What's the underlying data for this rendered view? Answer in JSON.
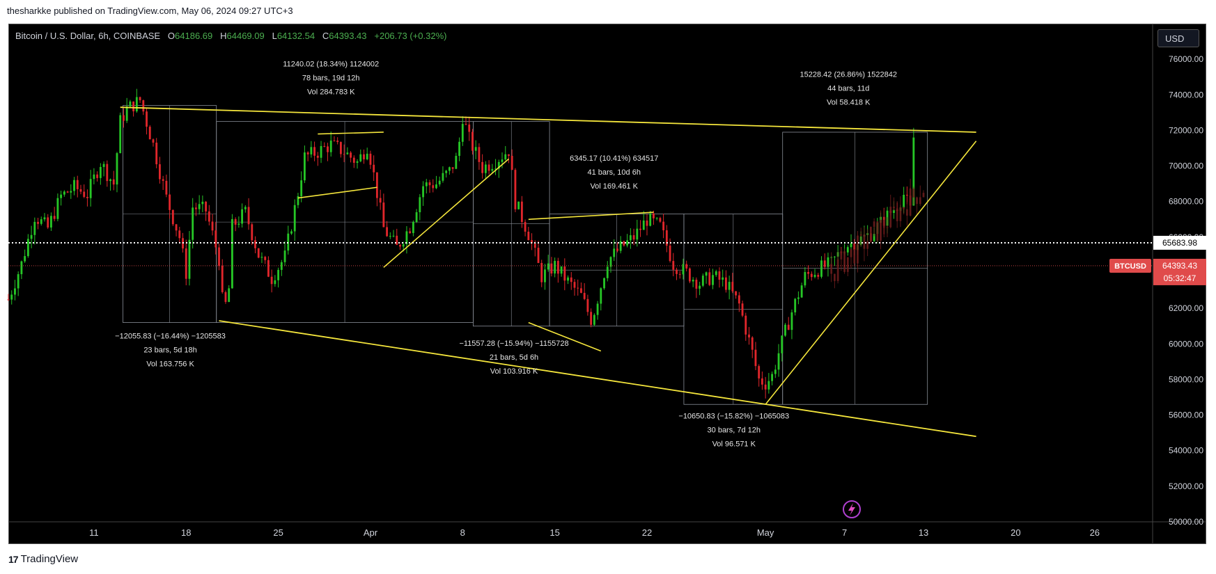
{
  "header": {
    "credit": "thesharkke published on TradingView.com, May 06, 2024 09:27 UTC+3"
  },
  "footer": {
    "logo_text": "TradingView"
  },
  "legend": {
    "symbol": "Bitcoin / U.S. Dollar, 6h, COINBASE",
    "o_label": "O",
    "o_value": "64186.69",
    "h_label": "H",
    "h_value": "64469.09",
    "l_label": "L",
    "l_value": "64132.54",
    "c_label": "C",
    "c_value": "64393.43",
    "change": "+206.73 (+0.32%)"
  },
  "currency_button": "USD",
  "colors": {
    "up": "#26c626",
    "down": "#e0262b",
    "trendline": "#f5e63c",
    "box": "#8a8f98",
    "price_tag": "#e04b4b",
    "background": "#000000"
  },
  "chart_data": {
    "type": "candlestick",
    "symbol": "BTCUSD",
    "interval": "6h",
    "y_axis": {
      "min": 50000,
      "max": 78000,
      "ticks": [
        "76000.00",
        "74000.00",
        "72000.00",
        "70000.00",
        "68000.00",
        "66000.00",
        "64000.00",
        "62000.00",
        "60000.00",
        "58000.00",
        "56000.00",
        "54000.00",
        "52000.00",
        "50000.00"
      ]
    },
    "x_axis": {
      "ticks": [
        {
          "label": "11",
          "day": 11
        },
        {
          "label": "18",
          "day": 18
        },
        {
          "label": "25",
          "day": 25
        },
        {
          "label": "Apr",
          "day": 32
        },
        {
          "label": "8",
          "day": 39
        },
        {
          "label": "15",
          "day": 46
        },
        {
          "label": "22",
          "day": 53
        },
        {
          "label": "May",
          "day": 62
        },
        {
          "label": "7",
          "day": 68
        },
        {
          "label": "13",
          "day": 74
        },
        {
          "label": "20",
          "day": 81
        },
        {
          "label": "26",
          "day": 87
        }
      ]
    },
    "price_lines": {
      "dotted": {
        "value": 65683.98,
        "label": "65683.98"
      },
      "last": {
        "value": 64393.43,
        "symbol": "BTCUSD",
        "label": "64393.43",
        "countdown": "05:32:47"
      }
    },
    "price_path": [
      [
        4.5,
        62500
      ],
      [
        5.5,
        64500
      ],
      [
        6.5,
        67200
      ],
      [
        7.5,
        66500
      ],
      [
        8.5,
        68300
      ],
      [
        9.5,
        68800
      ],
      [
        10.5,
        68400
      ],
      [
        11.5,
        70200
      ],
      [
        12.5,
        69000
      ],
      [
        13,
        72500
      ],
      [
        13.5,
        73200
      ],
      [
        14.5,
        73700
      ],
      [
        15.5,
        71200
      ],
      [
        16.5,
        68200
      ],
      [
        17.5,
        66000
      ],
      [
        18,
        64000
      ],
      [
        18.5,
        67700
      ],
      [
        19.5,
        67500
      ],
      [
        20.5,
        64800
      ],
      [
        20.8,
        62000
      ],
      [
        21.2,
        62400
      ],
      [
        21.5,
        66600
      ],
      [
        22.5,
        67400
      ],
      [
        23.5,
        65000
      ],
      [
        24.5,
        63700
      ],
      [
        25.5,
        64900
      ],
      [
        26.5,
        68500
      ],
      [
        27,
        70500
      ],
      [
        28,
        70800
      ],
      [
        29,
        71200
      ],
      [
        30,
        70800
      ],
      [
        31,
        70200
      ],
      [
        31.8,
        71200
      ],
      [
        32.3,
        69300
      ],
      [
        33,
        66500
      ],
      [
        34,
        65400
      ],
      [
        35,
        66600
      ],
      [
        36,
        68900
      ],
      [
        37,
        69000
      ],
      [
        38,
        69700
      ],
      [
        38.6,
        70500
      ],
      [
        39,
        72800
      ],
      [
        39.5,
        71500
      ],
      [
        40.5,
        69900
      ],
      [
        41.5,
        70300
      ],
      [
        42.5,
        70900
      ],
      [
        43,
        68000
      ],
      [
        44,
        66200
      ],
      [
        45,
        63800
      ],
      [
        46,
        64400
      ],
      [
        47,
        63500
      ],
      [
        48,
        62700
      ],
      [
        48.8,
        61300
      ],
      [
        49.3,
        62700
      ],
      [
        50,
        64700
      ],
      [
        51,
        65400
      ],
      [
        52,
        66000
      ],
      [
        53,
        67000
      ],
      [
        54,
        66600
      ],
      [
        55,
        64500
      ],
      [
        56,
        64000
      ],
      [
        57,
        63400
      ],
      [
        58,
        63800
      ],
      [
        59,
        63400
      ],
      [
        60,
        62200
      ],
      [
        61,
        59500
      ],
      [
        61.5,
        58000
      ],
      [
        62,
        57800
      ],
      [
        62.5,
        58200
      ],
      [
        63,
        59500
      ],
      [
        64,
        61800
      ],
      [
        65,
        63800
      ],
      [
        66,
        64200
      ],
      [
        67,
        64500
      ],
      [
        68,
        65500
      ],
      [
        69,
        65800
      ],
      [
        70,
        66200
      ],
      [
        71,
        67000
      ],
      [
        72,
        67800
      ],
      [
        72.5,
        68400
      ],
      [
        73,
        67500
      ],
      [
        73.4,
        71600
      ]
    ],
    "trendlines": [
      {
        "from": [
          13,
          73300
        ],
        "to": [
          78,
          71900
        ]
      },
      {
        "from": [
          20.5,
          61300
        ],
        "to": [
          78,
          54800
        ]
      },
      {
        "from": [
          26.5,
          68200
        ],
        "to": [
          32.5,
          68800
        ]
      },
      {
        "from": [
          28,
          71800
        ],
        "to": [
          33,
          71900
        ]
      },
      {
        "from": [
          33,
          64300
        ],
        "to": [
          42.5,
          70400
        ]
      },
      {
        "from": [
          44,
          67000
        ],
        "to": [
          53.5,
          67400
        ]
      },
      {
        "from": [
          44,
          61200
        ],
        "to": [
          49.5,
          59600
        ]
      },
      {
        "from": [
          62,
          56600
        ],
        "to": [
          78,
          71400
        ]
      }
    ],
    "measurements": [
      {
        "x1": 13.2,
        "x2": 20.3,
        "y1": 61200,
        "y2": 73400,
        "line1": "−12055.83 (−16.44%) −1205583",
        "line2": "23 bars, 5d 18h",
        "line3": "Vol 163.756 K",
        "label_day": 16.8,
        "label_price": 60300,
        "label_pos": "below"
      },
      {
        "x1": 20.3,
        "x2": 39.8,
        "y1": 61200,
        "y2": 72500,
        "line1": "11240.02 (18.34%) 1124002",
        "line2": "78 bars, 19d 12h",
        "line3": "Vol 284.783 K",
        "label_day": 29,
        "label_price": 75600,
        "label_pos": "above"
      },
      {
        "x1": 39.8,
        "x2": 45.6,
        "y1": 61000,
        "y2": 72500,
        "line1": "−11557.28 (−15.94%) −1155728",
        "line2": "21 bars, 5d 6h",
        "line3": "Vol 103.916 K",
        "label_day": 42.9,
        "label_price": 59900,
        "label_pos": "below"
      },
      {
        "x1": 45.6,
        "x2": 55.8,
        "y1": 61000,
        "y2": 67300,
        "line1": "6345.17 (10.41%) 634517",
        "line2": "41 bars, 10d 6h",
        "line3": "Vol 169.461 K",
        "label_day": 50.5,
        "label_price": 70300,
        "label_pos": "above"
      },
      {
        "x1": 55.8,
        "x2": 63.3,
        "y1": 56600,
        "y2": 67300,
        "line1": "−10650.83 (−15.82%) −1065083",
        "line2": "30 bars, 7d 12h",
        "line3": "Vol 96.571 K",
        "label_day": 59.6,
        "label_price": 55800,
        "label_pos": "below"
      },
      {
        "x1": 63.3,
        "x2": 74.3,
        "y1": 56600,
        "y2": 71900,
        "line1": "15228.42 (26.86%) 1522842",
        "line2": "44 bars, 11d",
        "line3": "Vol 58.418 K",
        "label_day": 68.3,
        "label_price": 75000,
        "label_pos": "above"
      }
    ],
    "faded_projection": {
      "from_day": 67,
      "to_day": 74
    }
  }
}
